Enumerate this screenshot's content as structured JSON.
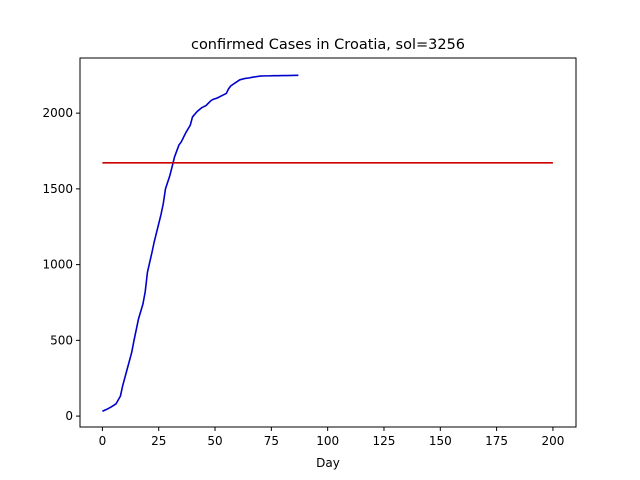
{
  "chart_data": {
    "type": "line",
    "title": "confirmed Cases in Croatia, sol=3256",
    "xlabel": "Day",
    "ylabel": "",
    "xlim": [
      -9.94,
      210.24
    ],
    "ylim": [
      -72,
      2364
    ],
    "xticks": [
      0,
      25,
      50,
      75,
      100,
      125,
      150,
      175,
      200
    ],
    "yticks": [
      0,
      500,
      1000,
      1500,
      2000
    ],
    "grid": false,
    "series": [
      {
        "color": "#0000cc",
        "x": [
          0,
          2,
          4,
          6,
          8,
          9,
          11,
          13,
          14,
          16,
          18,
          19,
          20,
          22,
          23,
          24,
          26,
          27,
          28,
          30,
          31,
          32,
          34,
          35,
          36,
          37,
          39,
          40,
          42,
          44,
          46,
          48,
          49,
          51,
          53,
          55,
          56,
          57,
          59,
          61,
          63,
          65,
          67,
          69,
          70,
          72,
          74,
          76,
          78,
          80,
          82,
          84,
          87
        ],
        "y": [
          32,
          45,
          61,
          80,
          132,
          200,
          310,
          420,
          497,
          640,
          740,
          820,
          950,
          1080,
          1150,
          1210,
          1330,
          1400,
          1500,
          1590,
          1650,
          1710,
          1790,
          1810,
          1840,
          1870,
          1920,
          1975,
          2010,
          2035,
          2050,
          2080,
          2090,
          2100,
          2115,
          2130,
          2160,
          2180,
          2200,
          2220,
          2228,
          2232,
          2238,
          2242,
          2245,
          2246,
          2246,
          2247,
          2247,
          2248,
          2248,
          2249,
          2250
        ]
      },
      {
        "color": "#cc0000",
        "x": [
          0,
          200
        ],
        "y": [
          1672,
          1672
        ]
      }
    ]
  }
}
